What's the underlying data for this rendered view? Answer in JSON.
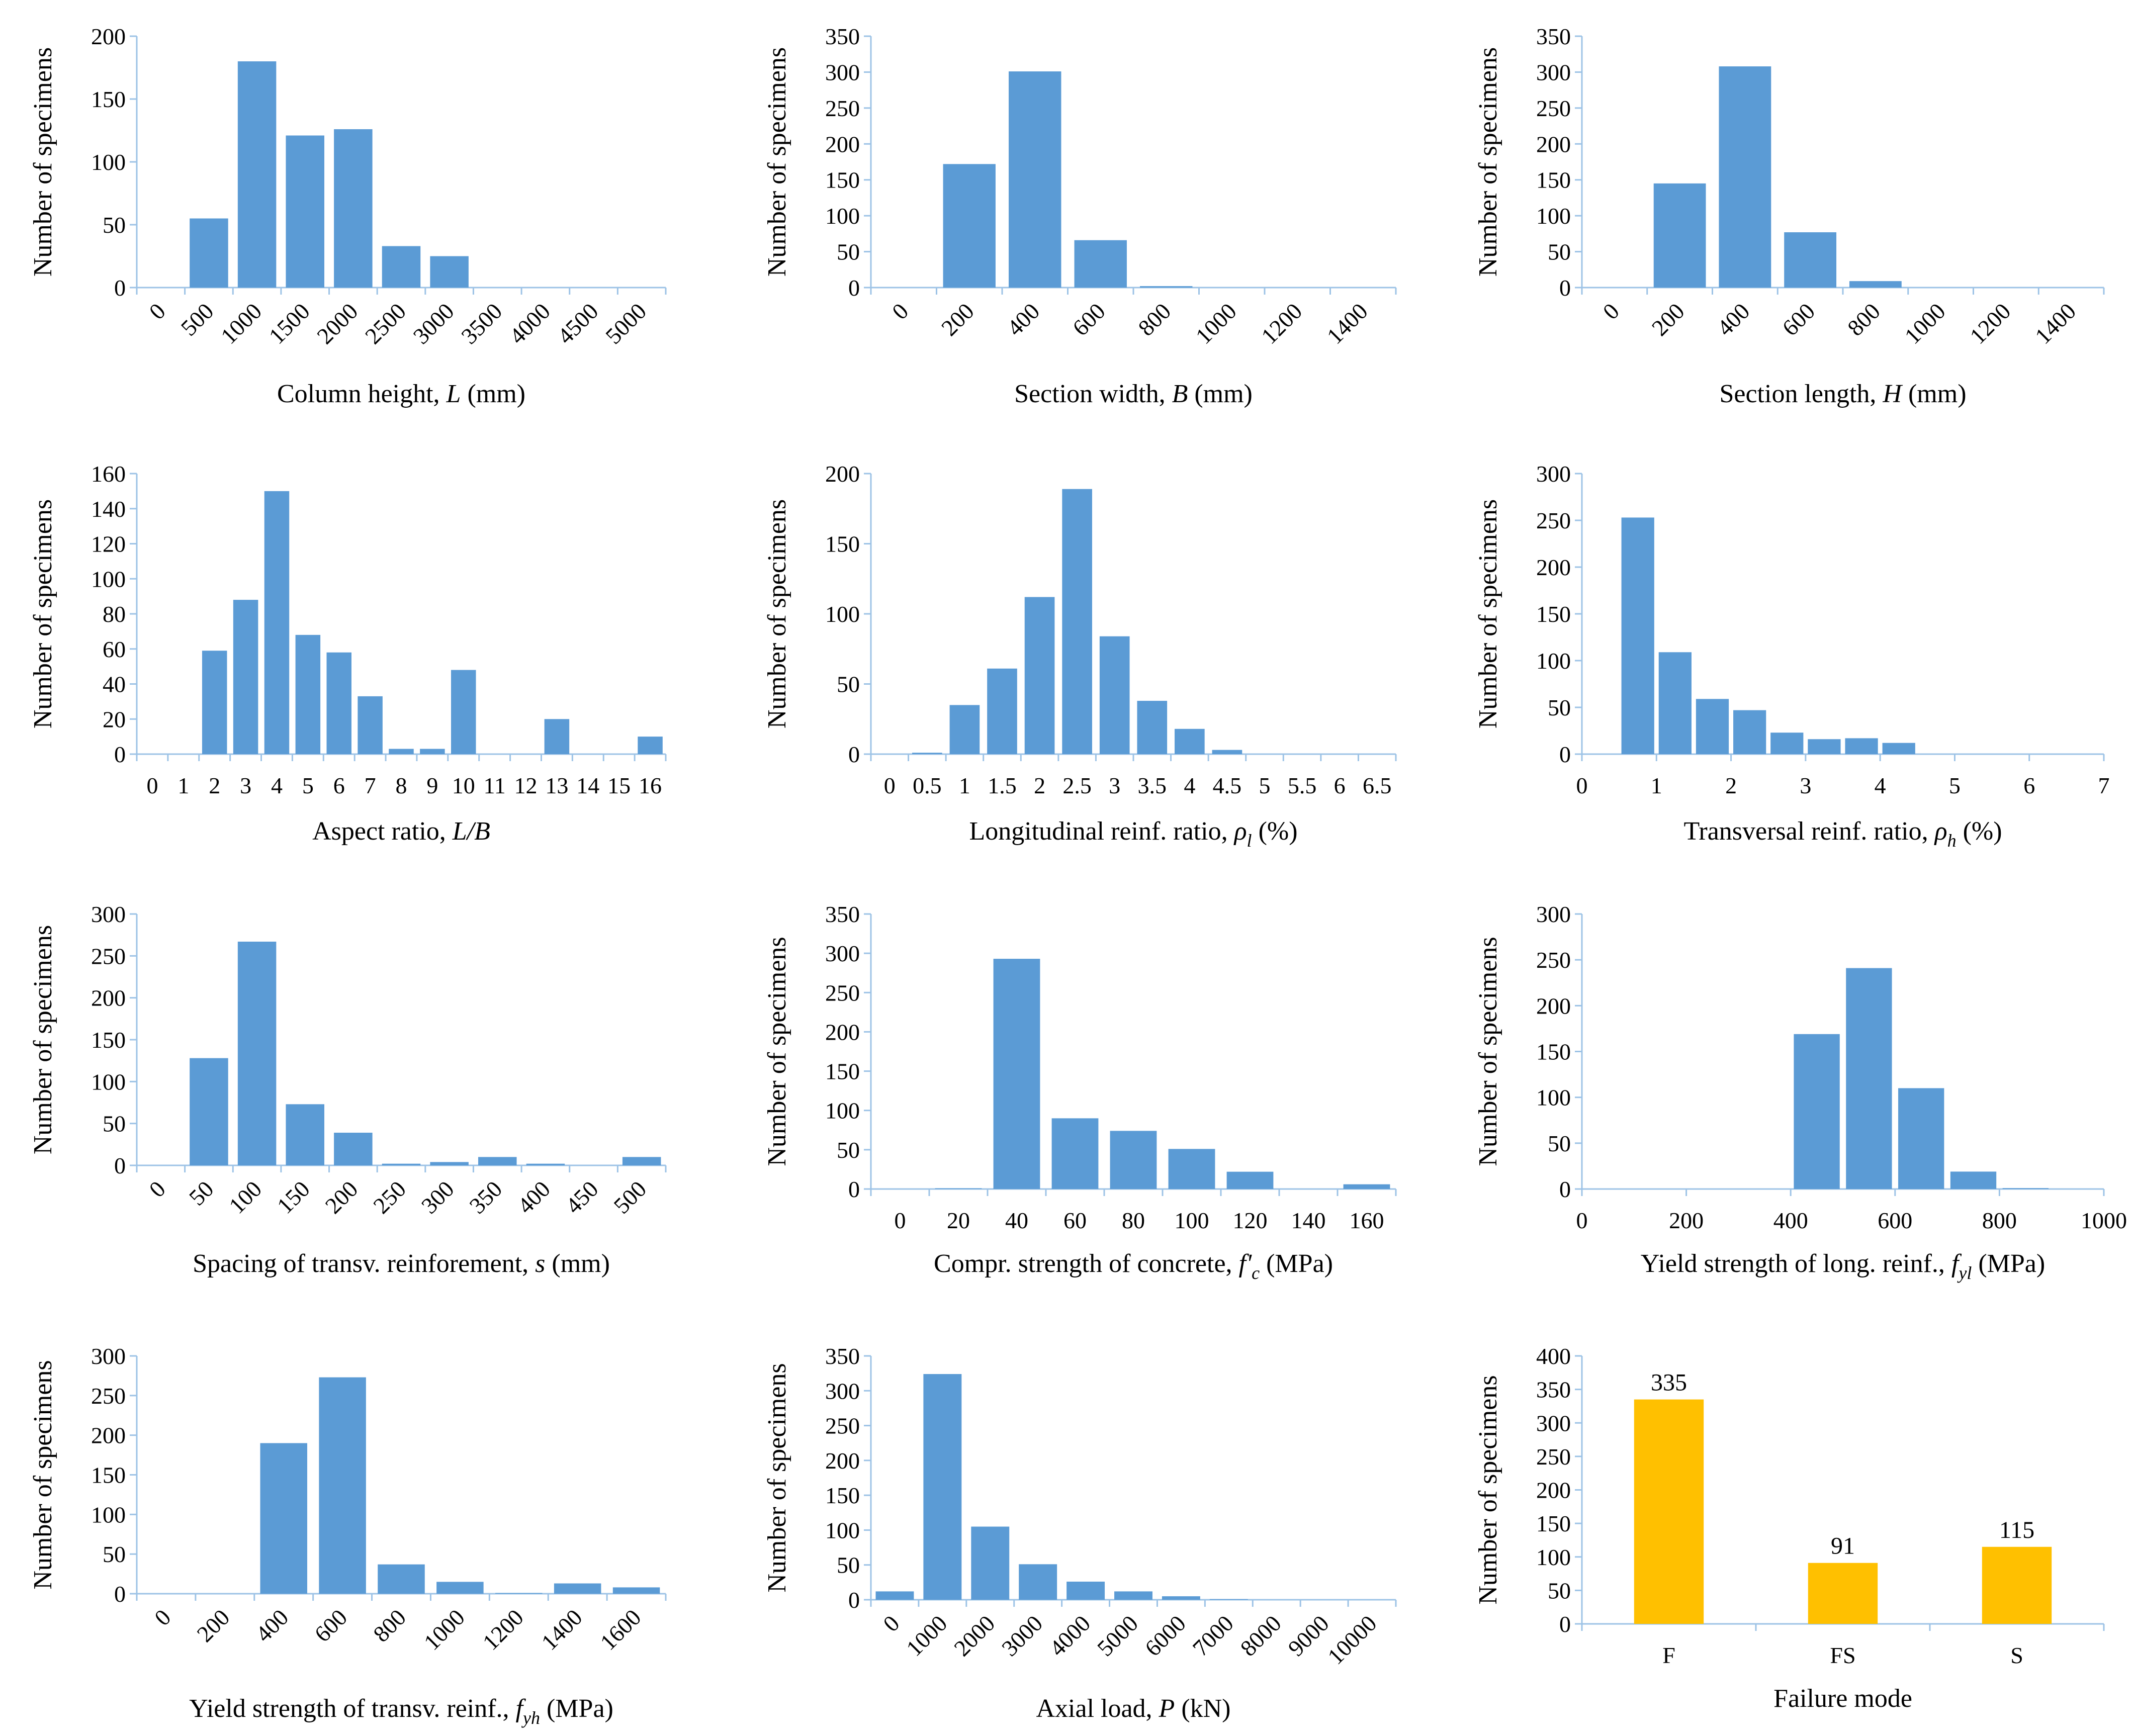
{
  "figure": {
    "bar_color": "#5b9bd5",
    "highlight_color": "#ffc000",
    "axis_color": "#9dc3e6"
  },
  "chart_data": [
    {
      "id": "column-height",
      "type": "bar",
      "ylabel": "Number of specimens",
      "xlabel": {
        "pre": "Column height, ",
        "var": "L",
        "sub": "",
        "post": " (mm)"
      },
      "categories": [
        "0",
        "500",
        "1000",
        "1500",
        "2000",
        "2500",
        "3000",
        "3500",
        "4000",
        "4500",
        "5000"
      ],
      "values": [
        0,
        55,
        180,
        121,
        126,
        33,
        25,
        0,
        0,
        0,
        0
      ],
      "ylim": [
        0,
        200
      ],
      "yticks": [
        0,
        50,
        100,
        150,
        200
      ],
      "rotated_ticks": true
    },
    {
      "id": "section-width",
      "type": "bar",
      "ylabel": "Number of specimens",
      "xlabel": {
        "pre": "Section width, ",
        "var": "B",
        "sub": "",
        "post": " (mm)"
      },
      "categories": [
        "0",
        "200",
        "400",
        "600",
        "800",
        "1000",
        "1200",
        "1400"
      ],
      "values": [
        0,
        172,
        301,
        66,
        2,
        0,
        0,
        0
      ],
      "ylim": [
        0,
        350
      ],
      "yticks": [
        0,
        50,
        100,
        150,
        200,
        250,
        300,
        350
      ],
      "rotated_ticks": true
    },
    {
      "id": "section-length",
      "type": "bar",
      "ylabel": "Number of specimens",
      "xlabel": {
        "pre": "Section length, ",
        "var": "H",
        "sub": "",
        "post": " (mm)"
      },
      "categories": [
        "0",
        "200",
        "400",
        "600",
        "800",
        "1000",
        "1200",
        "1400"
      ],
      "values": [
        0,
        145,
        308,
        77,
        9,
        0,
        0,
        0
      ],
      "ylim": [
        0,
        350
      ],
      "yticks": [
        0,
        50,
        100,
        150,
        200,
        250,
        300,
        350
      ],
      "rotated_ticks": true
    },
    {
      "id": "aspect-ratio",
      "type": "bar",
      "ylabel": "Number of specimens",
      "xlabel": {
        "pre": "Aspect  ratio, ",
        "var": "L/B",
        "sub": "",
        "post": ""
      },
      "categories": [
        "0",
        "1",
        "2",
        "3",
        "4",
        "5",
        "6",
        "7",
        "8",
        "9",
        "10",
        "11",
        "12",
        "13",
        "14",
        "15",
        "16"
      ],
      "values": [
        0,
        0,
        59,
        88,
        150,
        68,
        58,
        33,
        3,
        3,
        48,
        0,
        0,
        20,
        0,
        0,
        10
      ],
      "ylim": [
        0,
        160
      ],
      "yticks": [
        0,
        20,
        40,
        60,
        80,
        100,
        120,
        140,
        160
      ],
      "rotated_ticks": false
    },
    {
      "id": "longitudinal-reinf-ratio",
      "type": "bar",
      "ylabel": "Number of specimens",
      "xlabel": {
        "pre": "Longitudinal  reinf. ratio, ",
        "var": "ρ",
        "sub": "l",
        "post": " (%)"
      },
      "categories": [
        "0",
        "0.5",
        "1",
        "1.5",
        "2",
        "2.5",
        "3",
        "3.5",
        "4",
        "4.5",
        "5",
        "5.5",
        "6",
        "6.5"
      ],
      "values": [
        0,
        1,
        35,
        61,
        112,
        189,
        84,
        38,
        18,
        3,
        0,
        0,
        0,
        0
      ],
      "ylim": [
        0,
        200
      ],
      "yticks": [
        0,
        50,
        100,
        150,
        200
      ],
      "rotated_ticks": false
    },
    {
      "id": "transversal-reinf-ratio",
      "type": "bar",
      "ylabel": "Number of specimens",
      "xlabel": {
        "pre": "Transversal  reinf. ratio, ",
        "var": "ρ",
        "sub": "h",
        "post": " (%)"
      },
      "bin_width": 0.5,
      "x_range": [
        0,
        7
      ],
      "xticks": [
        "0",
        "1",
        "2",
        "3",
        "4",
        "5",
        "6",
        "7"
      ],
      "values": [
        0,
        253,
        109,
        59,
        47,
        23,
        16,
        17,
        12,
        0,
        0,
        0,
        0,
        0
      ],
      "ylim": [
        0,
        300
      ],
      "yticks": [
        0,
        50,
        100,
        150,
        200,
        250,
        300
      ],
      "rotated_ticks": false
    },
    {
      "id": "spacing-transv-reinf",
      "type": "bar",
      "ylabel": "Number of specimens",
      "xlabel": {
        "pre": "Spacing of transv.  reinforement, ",
        "var": "s",
        "sub": "",
        "post": " (mm)"
      },
      "categories": [
        "0",
        "50",
        "100",
        "150",
        "200",
        "250",
        "300",
        "350",
        "400",
        "450",
        "500"
      ],
      "values": [
        0,
        128,
        267,
        73,
        39,
        2,
        4,
        10,
        2,
        0,
        10
      ],
      "ylim": [
        0,
        300
      ],
      "yticks": [
        0,
        50,
        100,
        150,
        200,
        250,
        300
      ],
      "rotated_ticks": true
    },
    {
      "id": "compr-strength-concrete",
      "type": "bar",
      "ylabel": "Number of specimens",
      "xlabel": {
        "pre": "Compr.  strength  of concrete, ",
        "var": "f'",
        "sub": "c",
        "post": " (MPa)"
      },
      "categories": [
        "0",
        "20",
        "40",
        "60",
        "80",
        "100",
        "120",
        "140",
        "160"
      ],
      "values": [
        0,
        1,
        293,
        90,
        74,
        51,
        22,
        0,
        6
      ],
      "ylim": [
        0,
        350
      ],
      "yticks": [
        0,
        50,
        100,
        150,
        200,
        250,
        300,
        350
      ],
      "rotated_ticks": false
    },
    {
      "id": "yield-strength-long-reinf",
      "type": "bar",
      "ylabel": "Number of specimens",
      "xlabel": {
        "pre": "Yield strength  of long.  reinf., ",
        "var": "f",
        "sub": "yl",
        "post": " (MPa)"
      },
      "bin_width": 100,
      "x_range": [
        0,
        1000
      ],
      "xticks": [
        "0",
        "200",
        "400",
        "600",
        "800",
        "1000"
      ],
      "values": [
        0,
        0,
        0,
        0,
        169,
        241,
        110,
        19,
        1,
        0
      ],
      "ylim": [
        0,
        300
      ],
      "yticks": [
        0,
        50,
        100,
        150,
        200,
        250,
        300
      ],
      "rotated_ticks": false
    },
    {
      "id": "yield-strength-transv-reinf",
      "type": "bar",
      "ylabel": "Number of specimens",
      "xlabel": {
        "pre": "Yield  strength  of transv.  reinf., ",
        "var": "f",
        "sub": "yh",
        "post": " (MPa)"
      },
      "categories": [
        "0",
        "200",
        "400",
        "600",
        "800",
        "1000",
        "1200",
        "1400",
        "1600"
      ],
      "values": [
        0,
        0,
        190,
        273,
        37,
        15,
        1,
        13,
        8
      ],
      "ylim": [
        0,
        300
      ],
      "yticks": [
        0,
        50,
        100,
        150,
        200,
        250,
        300
      ],
      "rotated_ticks": true
    },
    {
      "id": "axial-load",
      "type": "bar",
      "ylabel": "Number of specimens",
      "xlabel": {
        "pre": "Axial  load, ",
        "var": "P",
        "sub": "",
        "post": " (kN)"
      },
      "categories": [
        "0",
        "1000",
        "2000",
        "3000",
        "4000",
        "5000",
        "6000",
        "7000",
        "8000",
        "9000",
        "10000"
      ],
      "values": [
        12,
        324,
        105,
        51,
        26,
        12,
        5,
        1,
        0,
        0,
        0
      ],
      "ylim": [
        0,
        350
      ],
      "yticks": [
        0,
        50,
        100,
        150,
        200,
        250,
        300,
        350
      ],
      "rotated_ticks": true
    },
    {
      "id": "failure-mode",
      "type": "bar",
      "ylabel": "Number of specimens",
      "xlabel": {
        "pre": "Failure mode",
        "var": "",
        "sub": "",
        "post": ""
      },
      "categories": [
        "F",
        "FS",
        "S"
      ],
      "values": [
        335,
        91,
        115
      ],
      "data_labels": [
        "335",
        "91",
        "115"
      ],
      "ylim": [
        0,
        400
      ],
      "yticks": [
        0,
        50,
        100,
        150,
        200,
        250,
        300,
        350,
        400
      ],
      "rotated_ticks": false,
      "color_key": "highlight_color"
    }
  ]
}
